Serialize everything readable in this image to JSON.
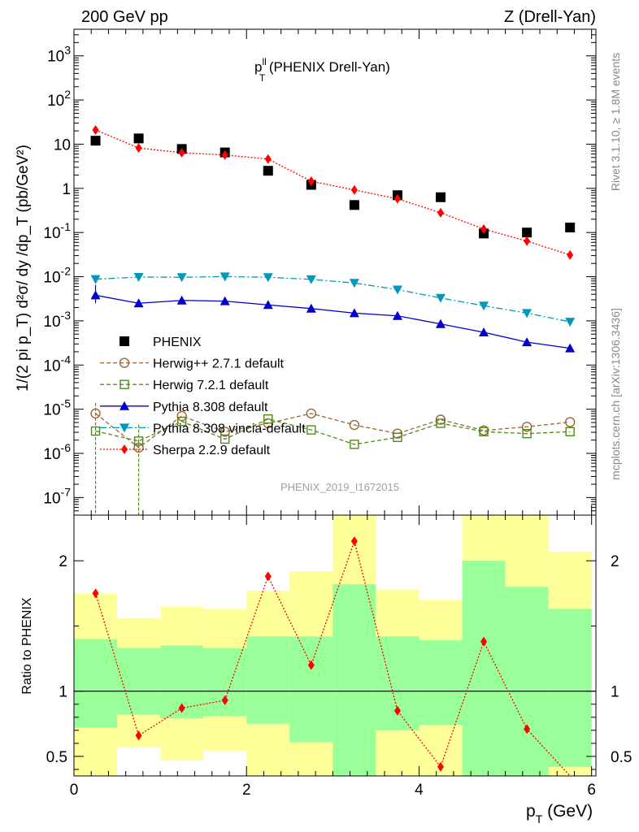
{
  "header": {
    "left": "200 GeV pp",
    "right": "Z (Drell-Yan)"
  },
  "side_labels": {
    "rivet": "Rivet 3.1.10, ≥ 1.8M events",
    "mcplots": "mcplots.cern.ch [arXiv:1306.3436]"
  },
  "watermark": "PHENIX_2019_I1672015",
  "chart_data": [
    {
      "type": "scatter",
      "panel": "main",
      "title_main": "p",
      "title_sup": "ll",
      "title_sub": "T",
      "title_rest": " (PHENIX Drell-Yan)",
      "ylabel": "1/(2 pi p_T) d²σ/ dy /dp_T (pb/GeV²)",
      "yscale": "log",
      "ylim": [
        4e-08,
        4000
      ],
      "xlim": [
        0,
        6.05
      ],
      "y_tick_labels": [
        "10^3",
        "10^2",
        "10",
        "1",
        "10^-1",
        "10^-2",
        "10^-3",
        "10^-4",
        "10^-5",
        "10^-6",
        "10^-7"
      ],
      "x": [
        0.25,
        0.75,
        1.25,
        1.75,
        2.25,
        2.75,
        3.25,
        3.75,
        4.25,
        4.75,
        5.25,
        5.75
      ],
      "series": [
        {
          "name": "PHENIX",
          "color": "#000000",
          "marker": "square",
          "values": [
            12,
            13.5,
            7.8,
            6.5,
            2.5,
            1.2,
            0.42,
            0.7,
            0.63,
            0.095,
            0.1,
            0.13
          ]
        },
        {
          "name": "Herwig++ 2.7.1 default",
          "color": "#996633",
          "marker": "open-circle",
          "dash": "5,3",
          "values": [
            8e-06,
            1.35e-06,
            7e-06,
            3.1e-06,
            4.8e-06,
            8e-06,
            4.4e-06,
            2.8e-06,
            5.8e-06,
            3.3e-06,
            4e-06,
            5.1e-06
          ]
        },
        {
          "name": "Herwig 7.2.1 default",
          "color": "#4d8c1a",
          "marker": "open-square",
          "dash": "5,3",
          "values": [
            3.2e-06,
            1.9e-06,
            5.3e-06,
            2.1e-06,
            6e-06,
            3.4e-06,
            1.6e-06,
            2.3e-06,
            4.8e-06,
            3.1e-06,
            2.8e-06,
            3.1e-06
          ]
        },
        {
          "name": "Pythia 8.308 default",
          "color": "#0000cc",
          "marker": "triangle-up",
          "dash": "",
          "values": [
            0.0038,
            0.0025,
            0.0029,
            0.0028,
            0.0023,
            0.0019,
            0.0015,
            0.0013,
            0.00085,
            0.00055,
            0.00033,
            0.00024
          ]
        },
        {
          "name": "Pythia 8.308 vincia-default",
          "color": "#0099bb",
          "marker": "triangle-down",
          "dash": "8,3,2,3",
          "values": [
            0.0088,
            0.0098,
            0.0097,
            0.0101,
            0.0097,
            0.0087,
            0.0072,
            0.0051,
            0.0033,
            0.0022,
            0.0015,
            0.00095
          ]
        },
        {
          "name": "Sherpa 2.2.9 default",
          "color": "#ff0000",
          "marker": "diamond",
          "dash": "2,2",
          "values": [
            21,
            8.2,
            6.4,
            5.7,
            4.6,
            1.45,
            0.92,
            0.58,
            0.28,
            0.12,
            0.064,
            0.031
          ]
        }
      ]
    },
    {
      "type": "scatter",
      "panel": "ratio",
      "ylabel": "Ratio to PHENIX",
      "xlabel_main": "p",
      "xlabel_sub": "T",
      "xlabel_rest": " (GeV)",
      "ylim": [
        0.35,
        2.35
      ],
      "xlim": [
        0,
        6.05
      ],
      "y_tick_labels": [
        "2",
        "1",
        "0.5"
      ],
      "y_tick_values": [
        2,
        1,
        0.5
      ],
      "x_tick_labels": [
        "0",
        "2",
        "4",
        "6"
      ],
      "x_tick_values": [
        0,
        2,
        4,
        6
      ],
      "bins": [
        0,
        0.5,
        1,
        1.5,
        2,
        2.5,
        3,
        3.5,
        4,
        4.5,
        5,
        5.5,
        6
      ],
      "band_colors": {
        "inner": "#99ff99",
        "outer": "#ffff99"
      },
      "bands_inner": [
        [
          0.72,
          1.4
        ],
        [
          0.82,
          1.33
        ],
        [
          0.79,
          1.35
        ],
        [
          0.81,
          1.33
        ],
        [
          0.75,
          1.42
        ],
        [
          0.61,
          1.42
        ],
        [
          0.3,
          1.82
        ],
        [
          0.7,
          1.42
        ],
        [
          0.74,
          1.39
        ],
        [
          0.3,
          2.0
        ],
        [
          0.3,
          1.8
        ],
        [
          0.42,
          1.63
        ]
      ],
      "bands_outer": [
        [
          0.3,
          1.75
        ],
        [
          0.57,
          1.56
        ],
        [
          0.47,
          1.65
        ],
        [
          0.54,
          1.63
        ],
        [
          0.3,
          1.77
        ],
        [
          0.3,
          1.92
        ],
        [
          0.3,
          2.35
        ],
        [
          0.3,
          1.78
        ],
        [
          0.3,
          1.7
        ],
        [
          0.3,
          2.35
        ],
        [
          0.3,
          2.35
        ],
        [
          0.3,
          2.07
        ]
      ],
      "series": [
        {
          "name": "Sherpa 2.2.9 default",
          "color": "#ff0000",
          "values": [
            1.75,
            0.66,
            0.87,
            0.93,
            1.88,
            1.2,
            2.15,
            0.85,
            0.42,
            1.38,
            0.71,
            0.3
          ]
        }
      ]
    }
  ]
}
